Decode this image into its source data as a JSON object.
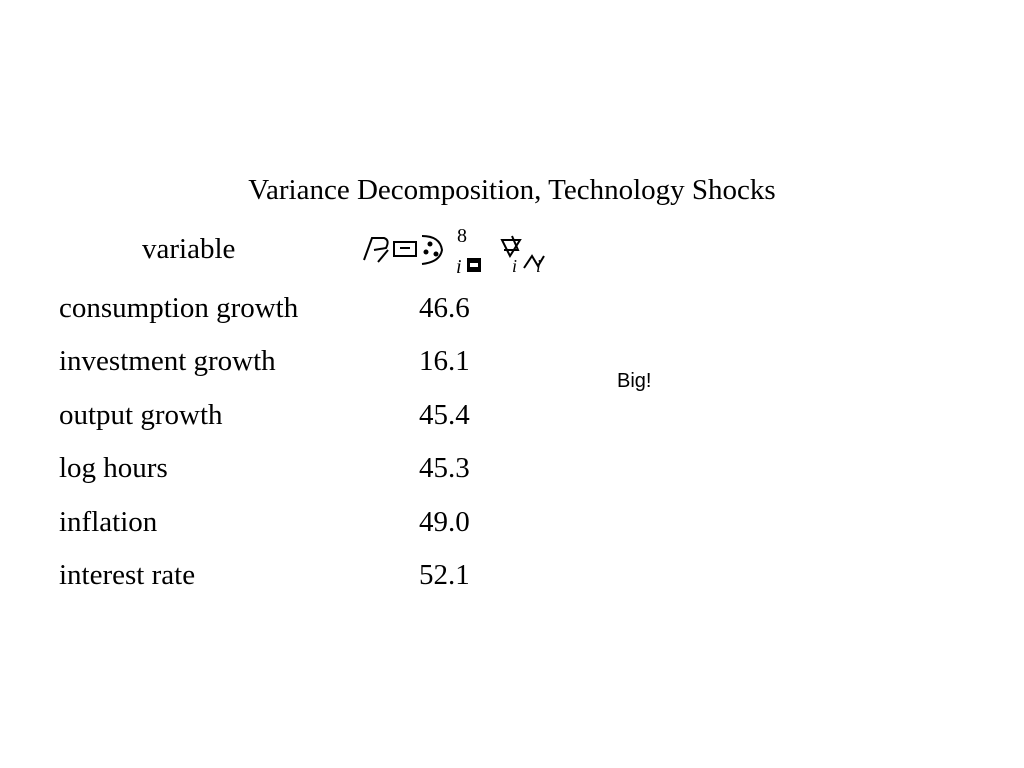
{
  "title": "Variance Decomposition, Technology Shocks",
  "table": {
    "column_header": "variable",
    "formula_icon": "garbled-math-formula-icon",
    "formula_superscript": "8",
    "formula_subscript": "i",
    "rows": [
      {
        "label": "consumption growth",
        "value": "46.6"
      },
      {
        "label": "investment growth",
        "value": "16.1"
      },
      {
        "label": "output growth",
        "value": "45.4"
      },
      {
        "label": "log hours",
        "value": "45.3"
      },
      {
        "label": "inflation",
        "value": "49.0"
      },
      {
        "label": "interest rate",
        "value": "52.1"
      }
    ]
  },
  "note": "Big!"
}
